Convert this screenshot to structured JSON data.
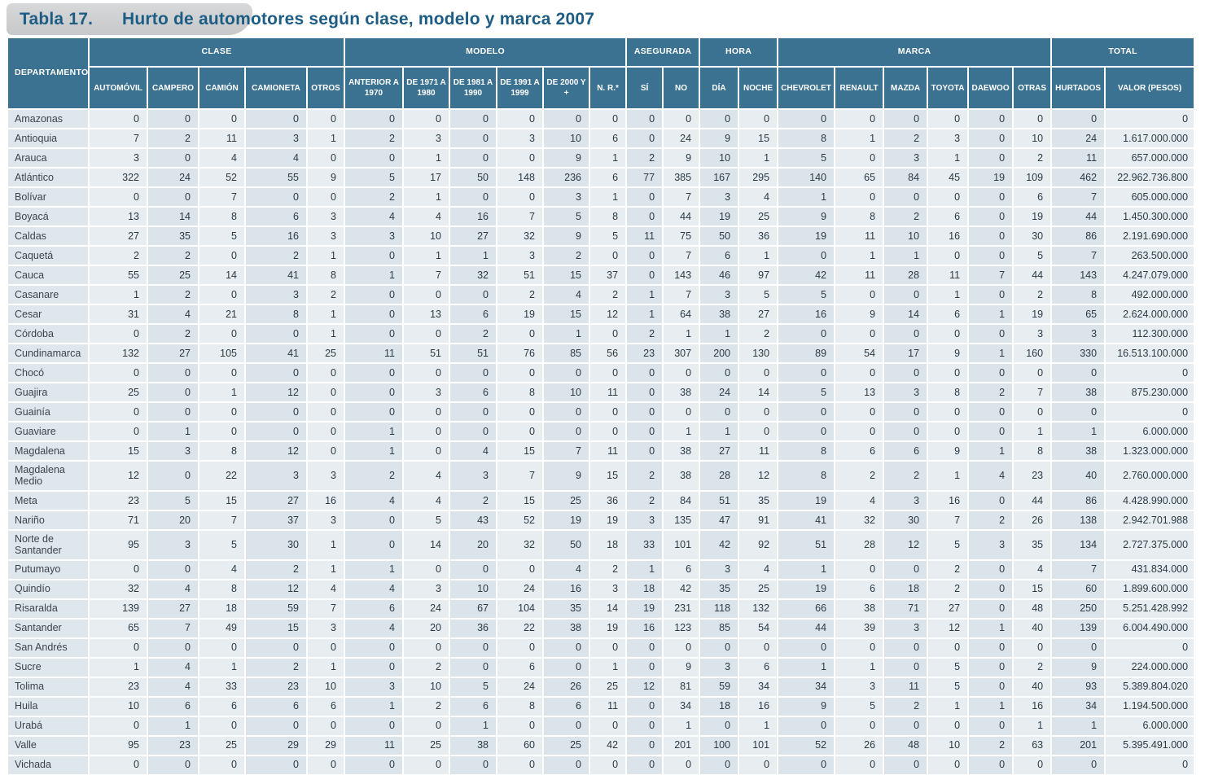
{
  "title": {
    "badge": "Tabla 17.",
    "text": "Hurto de automotores según clase, modelo y marca 2007"
  },
  "colors": {
    "header_bg": "#3b7291",
    "title_text": "#1d5d84",
    "badge_bg": "#c8cacc",
    "col_light": "#e7edf1",
    "col_dark": "#dbe4ea"
  },
  "table": {
    "corner_header": "DEPARTAMENTO",
    "groups": [
      {
        "label": "CLASE",
        "cols": [
          "AUTOMÓVIL",
          "CAMPERO",
          "CAMIÓN",
          "CAMIONETA",
          "OTROS"
        ]
      },
      {
        "label": "MODELO",
        "cols": [
          "ANTERIOR A 1970",
          "DE 1971 A 1980",
          "DE 1981 A 1990",
          "DE 1991 A 1999",
          "DE 2000 Y +",
          "N. R.*"
        ]
      },
      {
        "label": "ASEGURADA",
        "cols": [
          "SÍ",
          "NO"
        ]
      },
      {
        "label": "HORA",
        "cols": [
          "DÍA",
          "NOCHE"
        ]
      },
      {
        "label": "MARCA",
        "cols": [
          "CHEVROLET",
          "RENAULT",
          "MAZDA",
          "TOYOTA",
          "DAEWOO",
          "OTRAS"
        ]
      },
      {
        "label": "TOTAL",
        "cols": [
          "HURTADOS",
          "VALOR (PESOS)"
        ]
      }
    ],
    "rows": [
      {
        "department": "Amazonas",
        "values": [
          0,
          0,
          0,
          0,
          0,
          0,
          0,
          0,
          0,
          0,
          0,
          0,
          0,
          0,
          0,
          0,
          0,
          0,
          0,
          0,
          0,
          0,
          "0"
        ]
      },
      {
        "department": "Antioquia",
        "values": [
          7,
          2,
          11,
          3,
          1,
          2,
          3,
          0,
          3,
          10,
          6,
          0,
          24,
          9,
          15,
          8,
          1,
          2,
          3,
          0,
          10,
          24,
          "1.617.000.000"
        ]
      },
      {
        "department": "Arauca",
        "values": [
          3,
          0,
          4,
          4,
          0,
          0,
          1,
          0,
          0,
          9,
          1,
          2,
          9,
          10,
          1,
          5,
          0,
          3,
          1,
          0,
          2,
          11,
          "657.000.000"
        ]
      },
      {
        "department": "Atlántico",
        "values": [
          322,
          24,
          52,
          55,
          9,
          5,
          17,
          50,
          148,
          236,
          6,
          77,
          385,
          167,
          295,
          140,
          65,
          84,
          45,
          19,
          109,
          462,
          "22.962.736.800"
        ]
      },
      {
        "department": "Bolívar",
        "values": [
          0,
          0,
          7,
          0,
          0,
          2,
          1,
          0,
          0,
          3,
          1,
          0,
          7,
          3,
          4,
          1,
          0,
          0,
          0,
          0,
          6,
          7,
          "605.000.000"
        ]
      },
      {
        "department": "Boyacá",
        "values": [
          13,
          14,
          8,
          6,
          3,
          4,
          4,
          16,
          7,
          5,
          8,
          0,
          44,
          19,
          25,
          9,
          8,
          2,
          6,
          0,
          19,
          44,
          "1.450.300.000"
        ]
      },
      {
        "department": "Caldas",
        "values": [
          27,
          35,
          5,
          16,
          3,
          3,
          10,
          27,
          32,
          9,
          5,
          11,
          75,
          50,
          36,
          19,
          11,
          10,
          16,
          0,
          30,
          86,
          "2.191.690.000"
        ]
      },
      {
        "department": "Caquetá",
        "values": [
          2,
          2,
          0,
          2,
          1,
          0,
          1,
          1,
          3,
          2,
          0,
          0,
          7,
          6,
          1,
          0,
          1,
          1,
          0,
          0,
          5,
          7,
          "263.500.000"
        ]
      },
      {
        "department": "Cauca",
        "values": [
          55,
          25,
          14,
          41,
          8,
          1,
          7,
          32,
          51,
          15,
          37,
          0,
          143,
          46,
          97,
          42,
          11,
          28,
          11,
          7,
          44,
          143,
          "4.247.079.000"
        ]
      },
      {
        "department": "Casanare",
        "values": [
          1,
          2,
          0,
          3,
          2,
          0,
          0,
          0,
          2,
          4,
          2,
          1,
          7,
          3,
          5,
          5,
          0,
          0,
          1,
          0,
          2,
          8,
          "492.000.000"
        ]
      },
      {
        "department": "Cesar",
        "values": [
          31,
          4,
          21,
          8,
          1,
          0,
          13,
          6,
          19,
          15,
          12,
          1,
          64,
          38,
          27,
          16,
          9,
          14,
          6,
          1,
          19,
          65,
          "2.624.000.000"
        ]
      },
      {
        "department": "Córdoba",
        "values": [
          0,
          2,
          0,
          0,
          1,
          0,
          0,
          2,
          0,
          1,
          0,
          2,
          1,
          1,
          2,
          0,
          0,
          0,
          0,
          0,
          3,
          3,
          "112.300.000"
        ]
      },
      {
        "department": "Cundinamarca",
        "values": [
          132,
          27,
          105,
          41,
          25,
          11,
          51,
          51,
          76,
          85,
          56,
          23,
          307,
          200,
          130,
          89,
          54,
          17,
          9,
          1,
          160,
          330,
          "16.513.100.000"
        ]
      },
      {
        "department": "Chocó",
        "values": [
          0,
          0,
          0,
          0,
          0,
          0,
          0,
          0,
          0,
          0,
          0,
          0,
          0,
          0,
          0,
          0,
          0,
          0,
          0,
          0,
          0,
          0,
          "0"
        ]
      },
      {
        "department": "Guajira",
        "values": [
          25,
          0,
          1,
          12,
          0,
          0,
          3,
          6,
          8,
          10,
          11,
          0,
          38,
          24,
          14,
          5,
          13,
          3,
          8,
          2,
          7,
          38,
          "875.230.000"
        ]
      },
      {
        "department": "Guainía",
        "values": [
          0,
          0,
          0,
          0,
          0,
          0,
          0,
          0,
          0,
          0,
          0,
          0,
          0,
          0,
          0,
          0,
          0,
          0,
          0,
          0,
          0,
          0,
          "0"
        ]
      },
      {
        "department": "Guaviare",
        "values": [
          0,
          1,
          0,
          0,
          0,
          1,
          0,
          0,
          0,
          0,
          0,
          0,
          1,
          1,
          0,
          0,
          0,
          0,
          0,
          0,
          1,
          1,
          "6.000.000"
        ]
      },
      {
        "department": "Magdalena",
        "values": [
          15,
          3,
          8,
          12,
          0,
          1,
          0,
          4,
          15,
          7,
          11,
          0,
          38,
          27,
          11,
          8,
          6,
          6,
          9,
          1,
          8,
          38,
          "1.323.000.000"
        ]
      },
      {
        "department": "Magdalena Medio",
        "values": [
          12,
          0,
          22,
          3,
          3,
          2,
          4,
          3,
          7,
          9,
          15,
          2,
          38,
          28,
          12,
          8,
          2,
          2,
          1,
          4,
          23,
          40,
          "2.760.000.000"
        ]
      },
      {
        "department": "Meta",
        "values": [
          23,
          5,
          15,
          27,
          16,
          4,
          4,
          2,
          15,
          25,
          36,
          2,
          84,
          51,
          35,
          19,
          4,
          3,
          16,
          0,
          44,
          86,
          "4.428.990.000"
        ]
      },
      {
        "department": "Nariño",
        "values": [
          71,
          20,
          7,
          37,
          3,
          0,
          5,
          43,
          52,
          19,
          19,
          3,
          135,
          47,
          91,
          41,
          32,
          30,
          7,
          2,
          26,
          138,
          "2.942.701.988"
        ]
      },
      {
        "department": "Norte de Santander",
        "values": [
          95,
          3,
          5,
          30,
          1,
          0,
          14,
          20,
          32,
          50,
          18,
          33,
          101,
          42,
          92,
          51,
          28,
          12,
          5,
          3,
          35,
          134,
          "2.727.375.000"
        ]
      },
      {
        "department": "Putumayo",
        "values": [
          0,
          0,
          4,
          2,
          1,
          1,
          0,
          0,
          0,
          4,
          2,
          1,
          6,
          3,
          4,
          1,
          0,
          0,
          2,
          0,
          4,
          7,
          "431.834.000"
        ]
      },
      {
        "department": "Quindío",
        "values": [
          32,
          4,
          8,
          12,
          4,
          4,
          3,
          10,
          24,
          16,
          3,
          18,
          42,
          35,
          25,
          19,
          6,
          18,
          2,
          0,
          15,
          60,
          "1.899.600.000"
        ]
      },
      {
        "department": "Risaralda",
        "values": [
          139,
          27,
          18,
          59,
          7,
          6,
          24,
          67,
          104,
          35,
          14,
          19,
          231,
          118,
          132,
          66,
          38,
          71,
          27,
          0,
          48,
          250,
          "5.251.428.992"
        ]
      },
      {
        "department": "Santander",
        "values": [
          65,
          7,
          49,
          15,
          3,
          4,
          20,
          36,
          22,
          38,
          19,
          16,
          123,
          85,
          54,
          44,
          39,
          3,
          12,
          1,
          40,
          139,
          "6.004.490.000"
        ]
      },
      {
        "department": "San Andrés",
        "values": [
          0,
          0,
          0,
          0,
          0,
          0,
          0,
          0,
          0,
          0,
          0,
          0,
          0,
          0,
          0,
          0,
          0,
          0,
          0,
          0,
          0,
          0,
          "0"
        ]
      },
      {
        "department": "Sucre",
        "values": [
          1,
          4,
          1,
          2,
          1,
          0,
          2,
          0,
          6,
          0,
          1,
          0,
          9,
          3,
          6,
          1,
          1,
          0,
          5,
          0,
          2,
          9,
          "224.000.000"
        ]
      },
      {
        "department": "Tolima",
        "values": [
          23,
          4,
          33,
          23,
          10,
          3,
          10,
          5,
          24,
          26,
          25,
          12,
          81,
          59,
          34,
          34,
          3,
          11,
          5,
          0,
          40,
          93,
          "5.389.804.020"
        ]
      },
      {
        "department": "Huila",
        "values": [
          10,
          6,
          6,
          6,
          6,
          1,
          2,
          6,
          8,
          6,
          11,
          0,
          34,
          18,
          16,
          9,
          5,
          2,
          1,
          1,
          16,
          34,
          "1.194.500.000"
        ]
      },
      {
        "department": "Urabá",
        "values": [
          0,
          1,
          0,
          0,
          0,
          0,
          0,
          1,
          0,
          0,
          0,
          0,
          1,
          0,
          1,
          0,
          0,
          0,
          0,
          0,
          1,
          1,
          "6.000.000"
        ]
      },
      {
        "department": "Valle",
        "values": [
          95,
          23,
          25,
          29,
          29,
          11,
          25,
          38,
          60,
          25,
          42,
          0,
          201,
          100,
          101,
          52,
          26,
          48,
          10,
          2,
          63,
          201,
          "5.395.491.000"
        ]
      },
      {
        "department": "Vichada",
        "values": [
          0,
          0,
          0,
          0,
          0,
          0,
          0,
          0,
          0,
          0,
          0,
          0,
          0,
          0,
          0,
          0,
          0,
          0,
          0,
          0,
          0,
          0,
          "0"
        ]
      }
    ]
  }
}
